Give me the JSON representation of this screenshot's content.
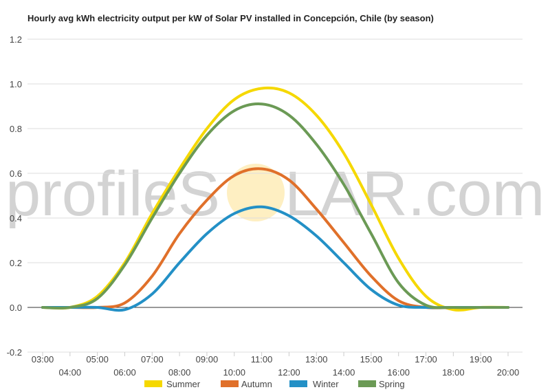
{
  "chart_data": {
    "type": "line",
    "title": "Hourly avg kWh electricity output per kW of Solar PV installed in Concepción, Chile (by season)",
    "xlabel": "",
    "ylabel": "",
    "x": [
      "03:00",
      "04:00",
      "05:00",
      "06:00",
      "07:00",
      "08:00",
      "09:00",
      "10:00",
      "11:00",
      "12:00",
      "13:00",
      "14:00",
      "15:00",
      "16:00",
      "17:00",
      "18:00",
      "19:00",
      "20:00"
    ],
    "ylim": [
      -0.2,
      1.2
    ],
    "yticks": [
      "-0.2",
      "0.0",
      "0.2",
      "0.4",
      "0.6",
      "0.8",
      "1.0",
      "1.2"
    ],
    "grid": true,
    "legend_position": "bottom",
    "series": [
      {
        "name": "Summer",
        "color": "#f5d800",
        "values": [
          0,
          0,
          0.05,
          0.2,
          0.42,
          0.62,
          0.8,
          0.93,
          0.98,
          0.96,
          0.86,
          0.69,
          0.46,
          0.22,
          0.05,
          -0.01,
          0,
          0
        ]
      },
      {
        "name": "Autumn",
        "color": "#e0702a",
        "values": [
          0,
          0,
          0,
          0.02,
          0.14,
          0.33,
          0.48,
          0.59,
          0.62,
          0.57,
          0.44,
          0.29,
          0.14,
          0.03,
          0,
          0,
          0,
          0
        ]
      },
      {
        "name": "Winter",
        "color": "#2390c6",
        "values": [
          0,
          0,
          0,
          -0.01,
          0.06,
          0.2,
          0.33,
          0.42,
          0.45,
          0.41,
          0.32,
          0.2,
          0.08,
          0.01,
          0,
          0,
          0,
          0
        ]
      },
      {
        "name": "Spring",
        "color": "#6b9a55",
        "values": [
          0,
          0,
          0.04,
          0.19,
          0.4,
          0.6,
          0.77,
          0.88,
          0.91,
          0.86,
          0.73,
          0.55,
          0.33,
          0.11,
          0.01,
          0,
          0,
          0
        ]
      }
    ]
  },
  "watermark": {
    "before": "profileS",
    "after": "LAR.com"
  },
  "colors": {
    "grid": "#dddddd",
    "zero_line": "#333333",
    "sun": "#fde8a8"
  }
}
